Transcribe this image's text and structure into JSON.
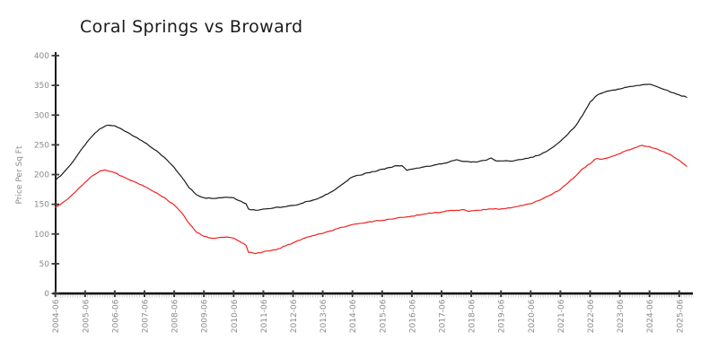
{
  "chart_data": {
    "type": "line",
    "title": "Coral Springs vs Broward",
    "xlabel": "",
    "ylabel": "Price Per Sq Ft",
    "ylim": [
      0,
      400
    ],
    "y_ticks": [
      0,
      50,
      100,
      150,
      200,
      250,
      300,
      350,
      400
    ],
    "x_tick_labels": [
      "2004-06",
      "2005-06",
      "2006-06",
      "2007-06",
      "2008-06",
      "2009-06",
      "2010-06",
      "2011-06",
      "2012-06",
      "2013-06",
      "2014-06",
      "2015-06",
      "2016-06",
      "2017-06",
      "2018-06",
      "2019-06",
      "2020-06",
      "2021-06",
      "2022-06",
      "2023-06",
      "2024-06",
      "2025-06"
    ],
    "x_range": [
      "2004-06",
      "2025-09"
    ],
    "x_minor_tick_unit": "month",
    "grid": false,
    "legend": "none",
    "style": "hand-drawn-xkcd",
    "series": [
      {
        "name": "Coral Springs",
        "color": "#1a1a1a",
        "points": [
          [
            "2004-06",
            190
          ],
          [
            "2004-09",
            202
          ],
          [
            "2004-12",
            216
          ],
          [
            "2005-03",
            233
          ],
          [
            "2005-06",
            250
          ],
          [
            "2005-09",
            265
          ],
          [
            "2005-12",
            277
          ],
          [
            "2006-03",
            283
          ],
          [
            "2006-06",
            282
          ],
          [
            "2006-09",
            276
          ],
          [
            "2006-12",
            269
          ],
          [
            "2007-01",
            266
          ],
          [
            "2007-03",
            262
          ],
          [
            "2007-06",
            254
          ],
          [
            "2007-09",
            245
          ],
          [
            "2007-12",
            236
          ],
          [
            "2008-03",
            225
          ],
          [
            "2008-06",
            212
          ],
          [
            "2008-09",
            196
          ],
          [
            "2008-12",
            178
          ],
          [
            "2009-03",
            166
          ],
          [
            "2009-06",
            161
          ],
          [
            "2009-09",
            160
          ],
          [
            "2009-12",
            161
          ],
          [
            "2010-03",
            162
          ],
          [
            "2010-06",
            161
          ],
          [
            "2010-09",
            155
          ],
          [
            "2010-11",
            151
          ],
          [
            "2010-12",
            142
          ],
          [
            "2011-03",
            140
          ],
          [
            "2011-06",
            142
          ],
          [
            "2011-09",
            143
          ],
          [
            "2011-12",
            145
          ],
          [
            "2012-03",
            146
          ],
          [
            "2012-06",
            148
          ],
          [
            "2012-09",
            151
          ],
          [
            "2012-12",
            155
          ],
          [
            "2013-03",
            158
          ],
          [
            "2013-06",
            163
          ],
          [
            "2013-09",
            170
          ],
          [
            "2013-12",
            178
          ],
          [
            "2014-03",
            187
          ],
          [
            "2014-06",
            196
          ],
          [
            "2014-09",
            199
          ],
          [
            "2014-12",
            203
          ],
          [
            "2015-03",
            205
          ],
          [
            "2015-06",
            209
          ],
          [
            "2015-09",
            212
          ],
          [
            "2015-12",
            215
          ],
          [
            "2016-02",
            215
          ],
          [
            "2016-04",
            207
          ],
          [
            "2016-06",
            209
          ],
          [
            "2016-09",
            211
          ],
          [
            "2016-12",
            214
          ],
          [
            "2017-03",
            216
          ],
          [
            "2017-06",
            218
          ],
          [
            "2017-09",
            221
          ],
          [
            "2017-12",
            225
          ],
          [
            "2018-03",
            222
          ],
          [
            "2018-06",
            221
          ],
          [
            "2018-09",
            222
          ],
          [
            "2018-12",
            224
          ],
          [
            "2019-02",
            228
          ],
          [
            "2019-04",
            223
          ],
          [
            "2019-06",
            223
          ],
          [
            "2019-09",
            223
          ],
          [
            "2019-12",
            224
          ],
          [
            "2020-03",
            226
          ],
          [
            "2020-06",
            229
          ],
          [
            "2020-09",
            232
          ],
          [
            "2020-12",
            238
          ],
          [
            "2021-03",
            246
          ],
          [
            "2021-06",
            256
          ],
          [
            "2021-09",
            268
          ],
          [
            "2021-12",
            281
          ],
          [
            "2022-03",
            300
          ],
          [
            "2022-06",
            322
          ],
          [
            "2022-09",
            334
          ],
          [
            "2022-12",
            339
          ],
          [
            "2023-03",
            342
          ],
          [
            "2023-06",
            344
          ],
          [
            "2023-09",
            347
          ],
          [
            "2023-12",
            349
          ],
          [
            "2024-03",
            351
          ],
          [
            "2024-06",
            352
          ],
          [
            "2024-09",
            348
          ],
          [
            "2024-12",
            343
          ],
          [
            "2025-03",
            338
          ],
          [
            "2025-06",
            334
          ],
          [
            "2025-09",
            330
          ]
        ]
      },
      {
        "name": "Broward",
        "color": "#f02421",
        "points": [
          [
            "2004-06",
            145
          ],
          [
            "2004-09",
            153
          ],
          [
            "2004-12",
            163
          ],
          [
            "2005-03",
            175
          ],
          [
            "2005-06",
            187
          ],
          [
            "2005-09",
            198
          ],
          [
            "2005-12",
            206
          ],
          [
            "2006-02",
            208
          ],
          [
            "2006-06",
            203
          ],
          [
            "2006-09",
            197
          ],
          [
            "2006-12",
            191
          ],
          [
            "2007-03",
            186
          ],
          [
            "2007-06",
            180
          ],
          [
            "2007-09",
            173
          ],
          [
            "2007-12",
            166
          ],
          [
            "2008-03",
            158
          ],
          [
            "2008-06",
            149
          ],
          [
            "2008-09",
            136
          ],
          [
            "2008-12",
            118
          ],
          [
            "2009-03",
            103
          ],
          [
            "2009-06",
            96
          ],
          [
            "2009-09",
            93
          ],
          [
            "2009-12",
            94
          ],
          [
            "2010-03",
            95
          ],
          [
            "2010-06",
            93
          ],
          [
            "2010-09",
            86
          ],
          [
            "2010-11",
            81
          ],
          [
            "2010-12",
            69
          ],
          [
            "2011-03",
            67
          ],
          [
            "2011-06",
            70
          ],
          [
            "2011-09",
            72
          ],
          [
            "2011-12",
            75
          ],
          [
            "2012-03",
            80
          ],
          [
            "2012-06",
            85
          ],
          [
            "2012-09",
            90
          ],
          [
            "2012-12",
            95
          ],
          [
            "2013-03",
            98
          ],
          [
            "2013-06",
            101
          ],
          [
            "2013-09",
            105
          ],
          [
            "2013-12",
            109
          ],
          [
            "2014-03",
            112
          ],
          [
            "2014-06",
            116
          ],
          [
            "2014-09",
            118
          ],
          [
            "2014-12",
            120
          ],
          [
            "2015-03",
            122
          ],
          [
            "2015-06",
            123
          ],
          [
            "2015-09",
            125
          ],
          [
            "2015-12",
            127
          ],
          [
            "2016-03",
            128
          ],
          [
            "2016-06",
            130
          ],
          [
            "2016-09",
            132
          ],
          [
            "2016-12",
            134
          ],
          [
            "2017-03",
            136
          ],
          [
            "2017-06",
            137
          ],
          [
            "2017-09",
            139
          ],
          [
            "2017-12",
            140
          ],
          [
            "2018-03",
            141
          ],
          [
            "2018-05",
            138
          ],
          [
            "2018-06",
            139
          ],
          [
            "2018-09",
            140
          ],
          [
            "2018-12",
            141
          ],
          [
            "2019-03",
            142
          ],
          [
            "2019-06",
            142
          ],
          [
            "2019-09",
            144
          ],
          [
            "2019-12",
            146
          ],
          [
            "2020-03",
            148
          ],
          [
            "2020-06",
            151
          ],
          [
            "2020-09",
            156
          ],
          [
            "2020-12",
            162
          ],
          [
            "2021-03",
            168
          ],
          [
            "2021-06",
            175
          ],
          [
            "2021-09",
            186
          ],
          [
            "2021-12",
            197
          ],
          [
            "2022-03",
            210
          ],
          [
            "2022-06",
            218
          ],
          [
            "2022-08",
            226
          ],
          [
            "2022-09",
            227
          ],
          [
            "2022-11",
            226
          ],
          [
            "2023-01",
            228
          ],
          [
            "2023-03",
            231
          ],
          [
            "2023-06",
            235
          ],
          [
            "2023-09",
            241
          ],
          [
            "2023-12",
            245
          ],
          [
            "2024-03",
            249
          ],
          [
            "2024-06",
            247
          ],
          [
            "2024-09",
            243
          ],
          [
            "2024-12",
            238
          ],
          [
            "2025-03",
            232
          ],
          [
            "2025-06",
            224
          ],
          [
            "2025-09",
            214
          ]
        ]
      }
    ]
  },
  "colors": {
    "background": "#ffffff",
    "axis": "#000000",
    "major_tick": "#3a3a3a",
    "minor_tick": "#cccccc",
    "tick_label": "#8a8a8a",
    "title_text": "#1b1b1b"
  }
}
